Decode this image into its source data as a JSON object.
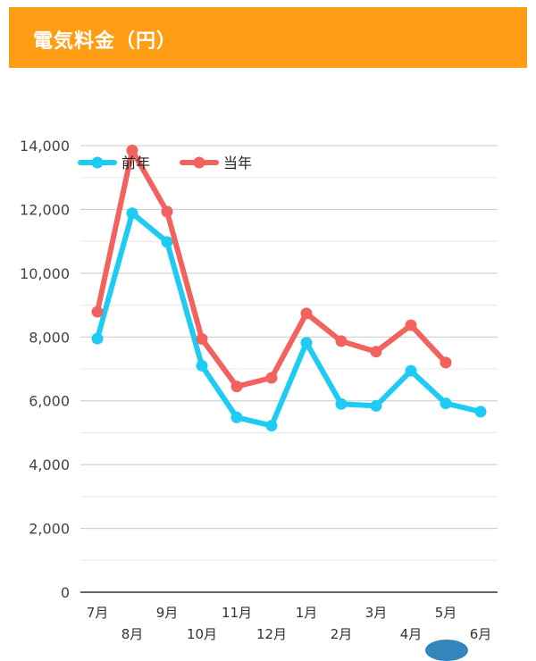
{
  "header": {
    "title": "電気料金（円）",
    "background": "#FF9E14"
  },
  "chart_data": {
    "type": "line",
    "title": "電気料金（円）",
    "categories": [
      "7月",
      "8月",
      "9月",
      "10月",
      "11月",
      "12月",
      "1月",
      "2月",
      "3月",
      "4月",
      "5月",
      "6月"
    ],
    "series": [
      {
        "name": "前年",
        "color": "#1ECBF2",
        "values": [
          7950,
          11880,
          10980,
          7100,
          5480,
          5220,
          7820,
          5900,
          5840,
          6940,
          5920,
          5660
        ]
      },
      {
        "name": "当年",
        "color": "#F2625F",
        "values": [
          8790,
          13850,
          11930,
          7940,
          6450,
          6720,
          8740,
          7870,
          7540,
          8370,
          7200,
          null
        ]
      }
    ],
    "yticks": [
      "0",
      "2,000",
      "4,000",
      "6,000",
      "8,000",
      "10,000",
      "12,000",
      "14,000"
    ],
    "ylim": [
      0,
      14000
    ],
    "grid": true,
    "legend_position": "top-left"
  }
}
